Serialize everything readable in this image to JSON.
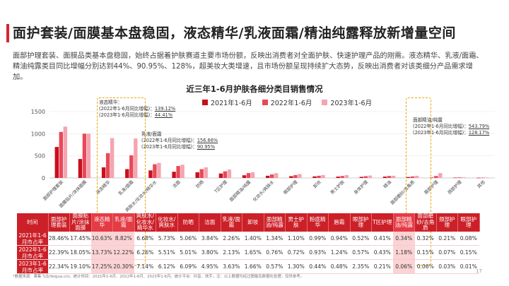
{
  "page": {
    "title": "面护套装/面膜基本盘稳固，液态精华/乳液面霜/精油纯露释放新增量空间",
    "description": "面部护理套装、面膜品类基本盘稳固，始终占据着护肤赛道主要市场份额，反映出消费者对全面护肤、快速护理产品的刚需。液态精华、乳液/面霜、精油纯露类目同比增幅分别达到44%、90.95%、128%，超美妆大类增速，且市场份额呈现持续扩大态势，反映出消费者对该类细分产品需求增加。",
    "footnote": "*数据来源：果集飞瓜(feigua.cn)。统计时间：2021年1-6月、2022年1-6月、2023年1-6月。统计平台：抖音、快手。注：以上数据均经过脱敏及数据化处理，仅供参考。",
    "page_number": "17"
  },
  "colors": {
    "s2021": "#c8101c",
    "s2022": "#e8495a",
    "s2023": "#f4a5b0",
    "accent": "#cc2028",
    "highlight": "#e8a700"
  },
  "annotations": {
    "serum": {
      "title": "液态精华：",
      "l1": "(2022年1-6月同比增幅)：",
      "v1": "139.12%",
      "l2": "(2023年1-6月同比增幅)：",
      "v2": "44.41%"
    },
    "lotion": {
      "title": "乳液/面霜",
      "l1": "(2022年1-6月同比增幅)：",
      "v1": "156.66%",
      "l2": "(2023年1-6月同比增幅)：",
      "v2": "90.95%"
    },
    "oil": {
      "title": "面部精油/纯露",
      "l1": "(2022年1-6月同比增幅)：",
      "v1": "543.79%",
      "l2": "(2023年1-6月同比增幅)：",
      "v2": "128.17%"
    }
  },
  "chart_data": {
    "type": "bar",
    "title": "近三年1-6月护肤各细分类目销售情况",
    "ylim": [
      0,
      1500
    ],
    "yticks": [
      0,
      500,
      1000,
      1500
    ],
    "categories": [
      "面部护理套装",
      "面膜贴片/涂抹面膜",
      "液态精华",
      "乳液/面霜",
      "爽肤水/化妆水/精华水",
      "洁面",
      "防晒",
      "T区护理",
      "面部精油/纯露",
      "化妆水/爽肤水",
      "眼部护理",
      "卸妆",
      "男士护肤",
      "身体护理",
      "精油",
      "面部磨砂/去角质",
      "唇部护理",
      "颈部护理",
      "其他"
    ],
    "series": [
      {
        "name": "2021年1-6月",
        "values": [
          700,
          430,
          240,
          200,
          170,
          140,
          130,
          100,
          60,
          50,
          40,
          35,
          30,
          25,
          30,
          20,
          10,
          8,
          5
        ]
      },
      {
        "name": "2022年1-6月",
        "values": [
          1040,
          1000,
          560,
          510,
          310,
          270,
          200,
          150,
          110,
          80,
          65,
          50,
          45,
          40,
          45,
          35,
          45,
          12,
          8
        ]
      },
      {
        "name": "2023年1-6月",
        "values": [
          1160,
          1000,
          900,
          890,
          340,
          300,
          240,
          190,
          130,
          110,
          90,
          65,
          65,
          55,
          50,
          50,
          110,
          15,
          10
        ]
      }
    ]
  },
  "table": {
    "corner": "时间",
    "headers": [
      "面部护理套装",
      "面膜贴片/涂抹面膜",
      "液态精华",
      "乳液/面霜",
      "爽肤水/化妆水/精华水",
      "化妆水/爽肤水",
      "防晒",
      "洁面",
      "乳液/面霜",
      "卸妆",
      "面部精油/纯露",
      "男士护肤",
      "粉底精华",
      "唇霜",
      "眼部护理",
      "T区护理",
      "面部精油/纯露",
      "面部磨砂/去角质",
      "颈部护理",
      "眼部护理"
    ],
    "rows": [
      {
        "label": "2021年1-6月市占率",
        "cells": [
          "28.46%",
          "17.45%",
          "10.63%",
          "8.82%",
          "6.68%",
          "5.73%",
          "5.06%",
          "3.84%",
          "2.26%",
          "1.40%",
          "1.34%",
          "1.10%",
          "0.99%",
          "0.94%",
          "0.52%",
          "0.41%",
          "0.34%",
          "0.32%",
          "0.21%",
          "0.08%"
        ]
      },
      {
        "label": "2022年1-6月市占率",
        "cells": [
          "22.39%",
          "18.05%",
          "13.73%",
          "12.22%",
          "6.26%",
          "5.51%",
          "5.01%",
          "3.80%",
          "2.13%",
          "1.65%",
          "0.76%",
          "0.72%",
          "0.93%",
          "1.24%",
          "0.57%",
          "0.43%",
          "1.18%",
          "0.15%",
          "0.07%",
          "0.15%"
        ]
      },
      {
        "label": "2023年1-6月市占率",
        "cells": [
          "22.34%",
          "19.10%",
          "17.25%",
          "20.30%",
          "7.14%",
          "6.12%",
          "6.09%",
          "4.95%",
          "3.63%",
          "1.66%",
          "0.57%",
          "1.30%",
          "0.44%",
          "0.48%",
          "2.35%",
          "0.21%",
          "0.06%",
          "0.06%",
          "0.03%",
          "0.01%"
        ]
      }
    ]
  }
}
